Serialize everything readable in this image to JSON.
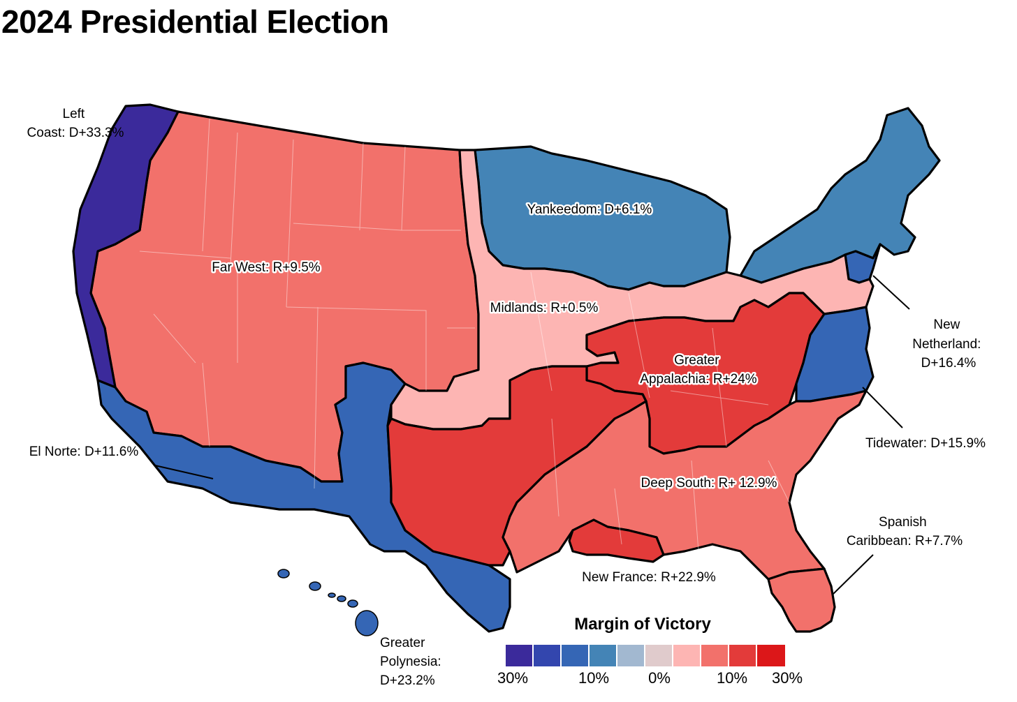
{
  "title": "2024 Presidential Election",
  "map": {
    "regions": [
      {
        "id": "left-coast",
        "label_lines": [
          "Left",
          "Coast: D+33.3%"
        ],
        "color": "#3b2a9b"
      },
      {
        "id": "far-west",
        "label_lines": [
          "Far West: R+9.5%"
        ],
        "color": "#f2716b"
      },
      {
        "id": "yankeedom",
        "label_lines": [
          "Yankeedom: D+6.1%"
        ],
        "color": "#4484b6"
      },
      {
        "id": "midlands",
        "label_lines": [
          "Midlands: R+0.5%"
        ],
        "color": "#fdb5b3"
      },
      {
        "id": "new-netherland",
        "label_lines": [
          "New",
          "Netherland:",
          "D+16.4%"
        ],
        "color": "#3566b5"
      },
      {
        "id": "greater-appalachia",
        "label_lines": [
          "Greater",
          "Appalachia: R+24%"
        ],
        "color": "#e33b3a"
      },
      {
        "id": "tidewater",
        "label_lines": [
          "Tidewater: D+15.9%"
        ],
        "color": "#3566b5"
      },
      {
        "id": "el-norte",
        "label_lines": [
          "El Norte: D+11.6%"
        ],
        "color": "#3566b5"
      },
      {
        "id": "deep-south",
        "label_lines": [
          "Deep South: R+ 12.9%"
        ],
        "color": "#f2716b"
      },
      {
        "id": "new-france",
        "label_lines": [
          "New France: R+22.9%"
        ],
        "color": "#e33b3a"
      },
      {
        "id": "spanish-caribbean",
        "label_lines": [
          "Spanish",
          "Caribbean: R+7.7%"
        ],
        "color": "#f2716b"
      },
      {
        "id": "greater-polynesia",
        "label_lines": [
          "Greater",
          "Polynesia:",
          "D+23.2%"
        ],
        "color": "#3566b5"
      }
    ]
  },
  "legend": {
    "title": "Margin of Victory",
    "swatches": [
      "#3b2a9b",
      "#3346ae",
      "#3566b5",
      "#4484b6",
      "#a2b8d0",
      "#e0cbcc",
      "#fdb5b3",
      "#f2716b",
      "#e33b3a",
      "#dc1719"
    ],
    "ticks": [
      "30%",
      "10%",
      "0%",
      "10%",
      "30%"
    ]
  }
}
